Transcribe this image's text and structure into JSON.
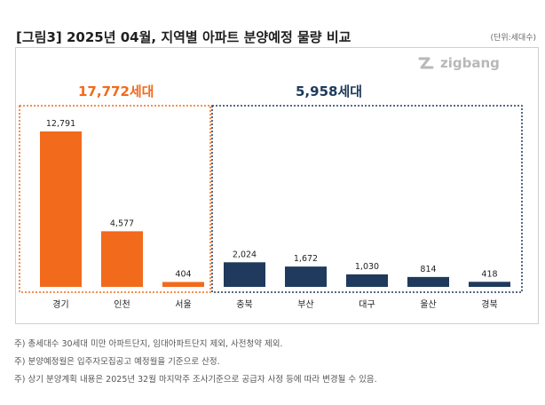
{
  "header": {
    "title": "[그림3] 2025년 04월, 지역별 아파트 분양예정 물량 비교",
    "unit": "(단위:세대수)"
  },
  "logo": {
    "text": "zigbang",
    "icon": "zigbang-logo-icon"
  },
  "groups": [
    {
      "total_label": "17,772세대",
      "color": "#f26a1b"
    },
    {
      "total_label": "5,958세대",
      "color": "#1f3a5c"
    }
  ],
  "chart_data": {
    "type": "bar",
    "categories": [
      "경기",
      "인천",
      "서울",
      "충북",
      "부산",
      "대구",
      "울산",
      "경북"
    ],
    "values": [
      12791,
      4577,
      404,
      2024,
      1672,
      1030,
      814,
      418
    ],
    "data_labels": [
      "12,791",
      "4,577",
      "404",
      "2,024",
      "1,672",
      "1,030",
      "814",
      "418"
    ],
    "bar_colors": [
      "#f26a1b",
      "#f26a1b",
      "#f26a1b",
      "#1f3a5c",
      "#1f3a5c",
      "#1f3a5c",
      "#1f3a5c",
      "#1f3a5c"
    ],
    "ylim": [
      0,
      12791
    ],
    "grid": false,
    "title": "",
    "xlabel": "",
    "ylabel": ""
  },
  "notes": [
    "주) 총세대수 30세대 미만 아파트단지, 임대아파트단지 제외, 사전청약 제외.",
    "주) 분양예정월은 입주자모집공고 예정월을 기준으로 산정.",
    "주) 상기 분양계획 내용은 2025년 32월  마지막주 조사기준으로 공급자 사정 등에 따라 변경될 수 있음."
  ]
}
